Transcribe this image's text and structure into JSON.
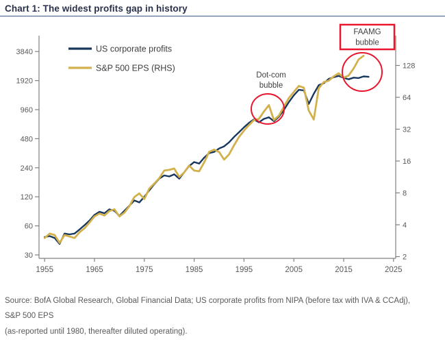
{
  "header": {
    "title": "Chart 1: The widest profits gap in history"
  },
  "chart_data": {
    "type": "line",
    "title": "Chart 1: The widest profits gap in history",
    "x_ticks": [
      1955,
      1965,
      1975,
      1985,
      1995,
      2005,
      2015,
      2025
    ],
    "left_axis": {
      "ticks": [
        3840,
        1920,
        960,
        480,
        240,
        120,
        60,
        30
      ],
      "min": 30,
      "max": 3840,
      "scale": "log2"
    },
    "right_axis": {
      "ticks": [
        128,
        64,
        32,
        16,
        8,
        4,
        2
      ],
      "min": 2,
      "max": 128,
      "scale": "log2"
    },
    "grid": "off",
    "legend_position": "top-left-inside",
    "years": [
      1955,
      1956,
      1957,
      1958,
      1959,
      1960,
      1961,
      1962,
      1963,
      1964,
      1965,
      1966,
      1967,
      1968,
      1969,
      1970,
      1971,
      1972,
      1973,
      1974,
      1975,
      1976,
      1977,
      1978,
      1979,
      1980,
      1981,
      1982,
      1983,
      1984,
      1985,
      1986,
      1987,
      1988,
      1989,
      1990,
      1991,
      1992,
      1993,
      1994,
      1995,
      1996,
      1997,
      1998,
      1999,
      2000,
      2001,
      2002,
      2003,
      2004,
      2005,
      2006,
      2007,
      2008,
      2009,
      2010,
      2011,
      2012,
      2013,
      2014,
      2015,
      2016,
      2017,
      2018,
      2019,
      2020
    ],
    "series": [
      {
        "name": "US corporate profits",
        "axis": "left",
        "color": "#17375e",
        "values": [
          46,
          47,
          45,
          39,
          50,
          49,
          50,
          55,
          61,
          68,
          78,
          84,
          81,
          89,
          86,
          76,
          86,
          97,
          110,
          105,
          120,
          140,
          162,
          185,
          200,
          195,
          205,
          185,
          215,
          250,
          275,
          265,
          305,
          340,
          350,
          380,
          400,
          440,
          500,
          560,
          630,
          700,
          760,
          710,
          770,
          800,
          730,
          810,
          950,
          1150,
          1350,
          1540,
          1520,
          1100,
          1400,
          1720,
          1800,
          2000,
          2080,
          2150,
          2050,
          1980,
          2060,
          2040,
          2120,
          2100
        ]
      },
      {
        "name": "S&P 500 EPS (RHS)",
        "axis": "right",
        "color": "#d2b04c",
        "values": [
          3.0,
          3.3,
          3.2,
          2.7,
          3.2,
          3.1,
          3.0,
          3.4,
          3.7,
          4.2,
          4.8,
          5.1,
          4.9,
          5.4,
          5.6,
          4.8,
          5.2,
          6.0,
          7.3,
          7.9,
          7.0,
          8.8,
          9.8,
          11.0,
          13.0,
          13.2,
          13.6,
          11.3,
          12.5,
          14.5,
          13.0,
          12.8,
          15.5,
          19.5,
          20.5,
          19.5,
          16.5,
          18.5,
          22.5,
          27.0,
          31.0,
          35.0,
          39.0,
          40.0,
          47.0,
          54.0,
          39.0,
          43.0,
          52.0,
          63.0,
          72.0,
          82.0,
          79.0,
          48.0,
          39.5,
          78.0,
          89.0,
          92.0,
          101.0,
          108.0,
          98.0,
          103.0,
          120.0,
          146.0,
          158.0,
          null
        ]
      }
    ],
    "annotations": [
      {
        "id": "dotcom",
        "lines": [
          "Dot-com",
          "bubble"
        ],
        "boxed": false,
        "circled": true
      },
      {
        "id": "faamg",
        "lines": [
          "FAAMG",
          "bubble"
        ],
        "boxed": true,
        "circled": true
      }
    ],
    "colors": {
      "accent_red": "#e8152c",
      "axis_line": "#808080",
      "tick_text": "#595959",
      "annotation_text": "#404040"
    }
  },
  "footer": {
    "source_line1": "Source: BofA Global Research, Global Financial Data; US corporate profits from NIPA (before tax with IVA & CCAdj), S&P 500 EPS",
    "source_line2": "(as-reported until 1980, thereafter diluted operating)."
  }
}
